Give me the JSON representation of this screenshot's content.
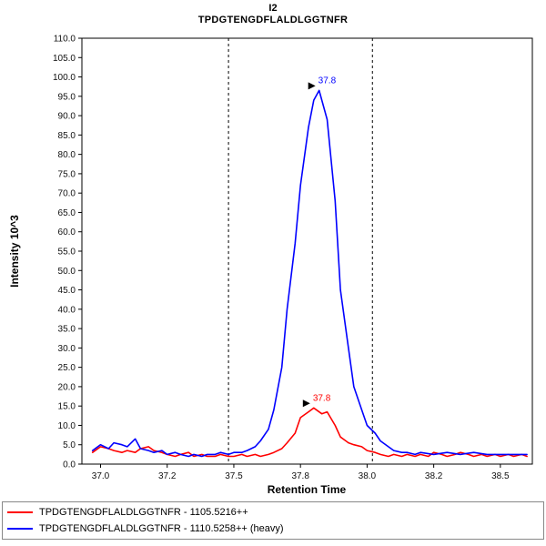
{
  "header": {
    "title": "I2",
    "subtitle": "TPDGTENGDFLALDLGGTNFR"
  },
  "chart_data": {
    "type": "line",
    "title": "I2",
    "subtitle": "TPDGTENGDFLALDLGGTNFR",
    "xlabel": "Retention Time",
    "ylabel": "Intensity 10^3",
    "xlim": [
      36.93,
      38.62
    ],
    "ylim": [
      0,
      110
    ],
    "y_tick_step": 5,
    "x_ticks": [
      {
        "v": 37.0,
        "label": "37.0"
      },
      {
        "v": 37.25,
        "label": "37.2"
      },
      {
        "v": 37.5,
        "label": "37.5"
      },
      {
        "v": 37.75,
        "label": "37.8"
      },
      {
        "v": 38.0,
        "label": "38.0"
      },
      {
        "v": 38.25,
        "label": "38.2"
      },
      {
        "v": 38.5,
        "label": "38.5"
      }
    ],
    "grid": false,
    "legend_position": "bottom-left",
    "peak_boundaries": [
      37.48,
      38.02
    ],
    "series": [
      {
        "name": "TPDGTENGDFLALDLGGTNFR - 1105.5216++",
        "color": "#ff0000",
        "annotation": {
          "label": "37.8",
          "x": 37.8,
          "y": 14.5
        },
        "points": [
          [
            36.97,
            3.0
          ],
          [
            37.0,
            4.5
          ],
          [
            37.03,
            4.0
          ],
          [
            37.05,
            3.5
          ],
          [
            37.08,
            3.0
          ],
          [
            37.1,
            3.5
          ],
          [
            37.13,
            3.0
          ],
          [
            37.15,
            4.0
          ],
          [
            37.18,
            4.5
          ],
          [
            37.2,
            3.5
          ],
          [
            37.23,
            3.0
          ],
          [
            37.25,
            2.5
          ],
          [
            37.28,
            2.0
          ],
          [
            37.3,
            2.5
          ],
          [
            37.33,
            3.0
          ],
          [
            37.35,
            2.0
          ],
          [
            37.38,
            2.5
          ],
          [
            37.4,
            2.0
          ],
          [
            37.43,
            2.0
          ],
          [
            37.45,
            2.5
          ],
          [
            37.48,
            2.0
          ],
          [
            37.5,
            2.0
          ],
          [
            37.53,
            2.5
          ],
          [
            37.55,
            2.0
          ],
          [
            37.58,
            2.5
          ],
          [
            37.6,
            2.0
          ],
          [
            37.63,
            2.5
          ],
          [
            37.65,
            3.0
          ],
          [
            37.68,
            4.0
          ],
          [
            37.7,
            5.5
          ],
          [
            37.73,
            8.0
          ],
          [
            37.75,
            12.0
          ],
          [
            37.78,
            13.5
          ],
          [
            37.8,
            14.5
          ],
          [
            37.83,
            13.0
          ],
          [
            37.85,
            13.5
          ],
          [
            37.88,
            10.0
          ],
          [
            37.9,
            7.0
          ],
          [
            37.93,
            5.5
          ],
          [
            37.95,
            5.0
          ],
          [
            37.98,
            4.5
          ],
          [
            38.0,
            3.5
          ],
          [
            38.03,
            3.0
          ],
          [
            38.05,
            2.5
          ],
          [
            38.08,
            2.0
          ],
          [
            38.1,
            2.5
          ],
          [
            38.13,
            2.0
          ],
          [
            38.15,
            2.5
          ],
          [
            38.18,
            2.0
          ],
          [
            38.2,
            2.5
          ],
          [
            38.23,
            2.0
          ],
          [
            38.25,
            3.0
          ],
          [
            38.28,
            2.5
          ],
          [
            38.3,
            2.0
          ],
          [
            38.33,
            2.5
          ],
          [
            38.35,
            3.0
          ],
          [
            38.38,
            2.5
          ],
          [
            38.4,
            2.0
          ],
          [
            38.43,
            2.5
          ],
          [
            38.45,
            2.0
          ],
          [
            38.48,
            2.5
          ],
          [
            38.5,
            2.0
          ],
          [
            38.53,
            2.5
          ],
          [
            38.55,
            2.0
          ],
          [
            38.58,
            2.5
          ],
          [
            38.6,
            2.0
          ]
        ]
      },
      {
        "name": "TPDGTENGDFLALDLGGTNFR - 1110.5258++ (heavy)",
        "color": "#0000ff",
        "annotation": {
          "label": "37.8",
          "x": 37.82,
          "y": 96.5
        },
        "points": [
          [
            36.97,
            3.5
          ],
          [
            37.0,
            5.0
          ],
          [
            37.03,
            4.0
          ],
          [
            37.05,
            5.5
          ],
          [
            37.08,
            5.0
          ],
          [
            37.1,
            4.5
          ],
          [
            37.13,
            6.5
          ],
          [
            37.15,
            4.0
          ],
          [
            37.18,
            3.5
          ],
          [
            37.2,
            3.0
          ],
          [
            37.23,
            3.5
          ],
          [
            37.25,
            2.5
          ],
          [
            37.28,
            3.0
          ],
          [
            37.3,
            2.5
          ],
          [
            37.33,
            2.0
          ],
          [
            37.35,
            2.5
          ],
          [
            37.38,
            2.0
          ],
          [
            37.4,
            2.5
          ],
          [
            37.43,
            2.5
          ],
          [
            37.45,
            3.0
          ],
          [
            37.48,
            2.5
          ],
          [
            37.5,
            3.0
          ],
          [
            37.53,
            3.0
          ],
          [
            37.55,
            3.5
          ],
          [
            37.58,
            4.5
          ],
          [
            37.6,
            6.0
          ],
          [
            37.63,
            9.0
          ],
          [
            37.65,
            14.0
          ],
          [
            37.68,
            25.0
          ],
          [
            37.7,
            40.0
          ],
          [
            37.73,
            57.0
          ],
          [
            37.75,
            72.0
          ],
          [
            37.78,
            87.0
          ],
          [
            37.8,
            94.0
          ],
          [
            37.82,
            96.5
          ],
          [
            37.85,
            89.0
          ],
          [
            37.88,
            68.0
          ],
          [
            37.9,
            45.0
          ],
          [
            37.93,
            30.0
          ],
          [
            37.95,
            20.0
          ],
          [
            37.98,
            14.0
          ],
          [
            38.0,
            10.0
          ],
          [
            38.03,
            8.0
          ],
          [
            38.05,
            6.0
          ],
          [
            38.08,
            4.5
          ],
          [
            38.1,
            3.5
          ],
          [
            38.13,
            3.0
          ],
          [
            38.15,
            3.0
          ],
          [
            38.18,
            2.5
          ],
          [
            38.2,
            3.0
          ],
          [
            38.25,
            2.5
          ],
          [
            38.3,
            3.0
          ],
          [
            38.35,
            2.5
          ],
          [
            38.4,
            3.0
          ],
          [
            38.45,
            2.5
          ],
          [
            38.5,
            2.5
          ],
          [
            38.55,
            2.5
          ],
          [
            38.6,
            2.5
          ]
        ]
      }
    ]
  }
}
